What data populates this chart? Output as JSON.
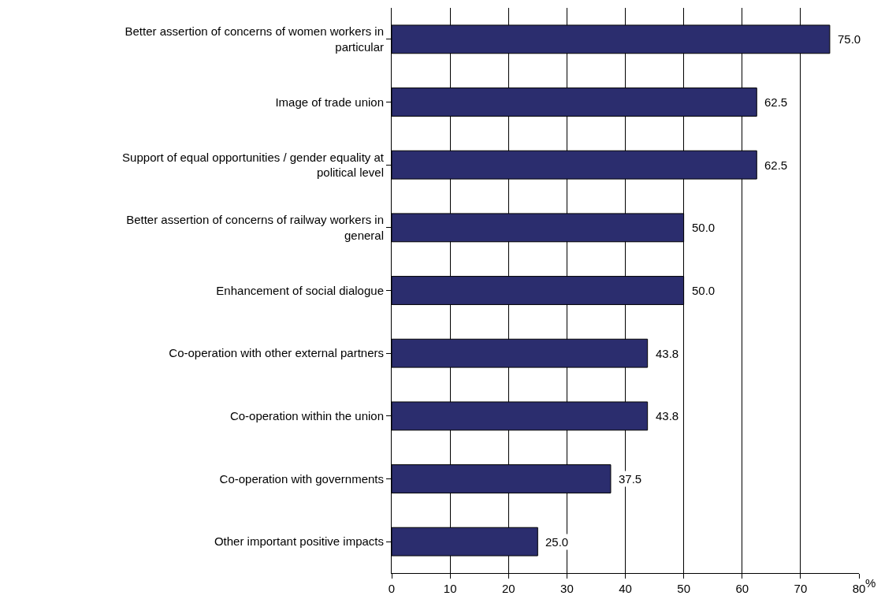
{
  "chart_data": {
    "type": "bar",
    "orientation": "horizontal",
    "xlabel": "%",
    "categories": [
      "Better assertion of concerns of women workers in particular",
      "Image of trade union",
      "Support of equal opportunities / gender equality at political level",
      "Better assertion of concerns of railway workers in general",
      "Enhancement of social dialogue",
      "Co-operation with other external partners",
      "Co-operation within the union",
      "Co-operation with governments",
      "Other important positive impacts"
    ],
    "values": [
      75.0,
      62.5,
      62.5,
      50.0,
      50.0,
      43.8,
      43.8,
      37.5,
      25.0
    ],
    "value_labels": [
      "75.0",
      "62.5",
      "62.5",
      "50.0",
      "50.0",
      "43.8",
      "43.8",
      "37.5",
      "25.0"
    ],
    "color": "#2b2d6e",
    "xlim": [
      0,
      80
    ],
    "xticks": [
      0,
      10,
      20,
      30,
      40,
      50,
      60,
      70,
      80
    ],
    "grid": "x",
    "legend": false
  }
}
